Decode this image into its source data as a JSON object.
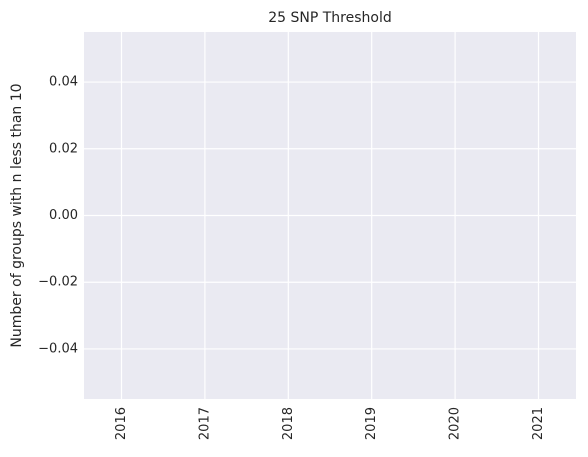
{
  "chart_data": {
    "type": "line",
    "title": "25 SNP Threshold",
    "xlabel": "",
    "ylabel": "Number of groups with n less than 10",
    "categories": [
      "2016",
      "2017",
      "2018",
      "2019",
      "2020",
      "2021"
    ],
    "series": [],
    "xlim": [
      2015.55,
      2021.45
    ],
    "ylim": [
      -0.055,
      0.055
    ],
    "yticks": [
      -0.04,
      -0.02,
      0.0,
      0.02,
      0.04
    ],
    "ytick_labels": [
      "−0.04",
      "−0.02",
      "0.00",
      "0.02",
      "0.04"
    ],
    "grid": true,
    "legend": "none",
    "colors": {
      "plot_background": "#EAEAF2",
      "grid": "#FFFFFF",
      "text": "#262626"
    }
  }
}
